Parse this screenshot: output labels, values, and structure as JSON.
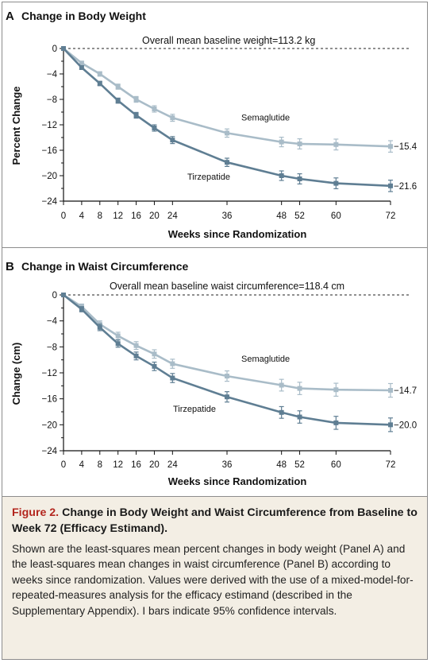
{
  "figure": {
    "caption_label": "Figure 2.",
    "caption_title": "Change in Body Weight and Waist Circumference from Baseline to Week 72 (Efficacy Estimand).",
    "caption_body": "Shown are the least-squares mean percent changes in body weight (Panel A) and the least-squares mean changes in waist circumference (Panel B) according to weeks since randomization. Values were derived with the use of a mixed-model-for-repeated-measures analysis for the efficacy estimand (described in the Supplementary Appendix). I bars indicate 95% confidence intervals."
  },
  "chart_data": [
    {
      "type": "line",
      "panel_letter": "A",
      "title": "Change in Body Weight",
      "xlabel": "Weeks since Randomization",
      "ylabel": "Percent Change",
      "baseline_note": "Overall mean baseline weight=113.2 kg",
      "xlim": [
        0,
        72
      ],
      "ylim": [
        -24,
        0
      ],
      "x_ticks": [
        0,
        4,
        8,
        12,
        16,
        20,
        24,
        36,
        48,
        52,
        60,
        72
      ],
      "y_ticks": [
        0,
        -4,
        -8,
        -12,
        -16,
        -20,
        -24
      ],
      "grid": false,
      "series": [
        {
          "name": "Semaglutide",
          "color": "#a9bcc8",
          "end_label": "−15.4",
          "x": [
            0,
            4,
            8,
            12,
            16,
            20,
            24,
            36,
            48,
            52,
            60,
            72
          ],
          "y": [
            0,
            -2.3,
            -4.0,
            -6.0,
            -8.0,
            -9.5,
            -10.9,
            -13.3,
            -14.7,
            -15.0,
            -15.1,
            -15.4
          ],
          "ci_halfwidth": [
            0,
            0.3,
            0.35,
            0.4,
            0.45,
            0.5,
            0.55,
            0.65,
            0.75,
            0.8,
            0.85,
            0.9
          ]
        },
        {
          "name": "Tirzepatide",
          "color": "#5f7e93",
          "end_label": "−21.6",
          "x": [
            0,
            4,
            8,
            12,
            16,
            20,
            24,
            36,
            48,
            52,
            60,
            72
          ],
          "y": [
            0,
            -3.0,
            -5.5,
            -8.2,
            -10.5,
            -12.5,
            -14.4,
            -17.9,
            -20.0,
            -20.5,
            -21.2,
            -21.6
          ],
          "ci_halfwidth": [
            0,
            0.3,
            0.35,
            0.4,
            0.45,
            0.5,
            0.55,
            0.65,
            0.75,
            0.8,
            0.85,
            0.9
          ]
        }
      ]
    },
    {
      "type": "line",
      "panel_letter": "B",
      "title": "Change in Waist Circumference",
      "xlabel": "Weeks since Randomization",
      "ylabel": "Change (cm)",
      "baseline_note": "Overall mean baseline waist circumference=118.4 cm",
      "xlim": [
        0,
        72
      ],
      "ylim": [
        -24,
        0
      ],
      "x_ticks": [
        0,
        4,
        8,
        12,
        16,
        20,
        24,
        36,
        48,
        52,
        60,
        72
      ],
      "y_ticks": [
        0,
        -4,
        -8,
        -12,
        -16,
        -20,
        -24
      ],
      "grid": false,
      "series": [
        {
          "name": "Semaglutide",
          "color": "#a9bcc8",
          "end_label": "−14.7",
          "x": [
            0,
            4,
            8,
            12,
            16,
            20,
            24,
            36,
            48,
            52,
            60,
            72
          ],
          "y": [
            0,
            -1.8,
            -4.5,
            -6.3,
            -7.8,
            -9.1,
            -10.6,
            -12.5,
            -13.9,
            -14.4,
            -14.6,
            -14.7
          ],
          "ci_halfwidth": [
            0,
            0.4,
            0.5,
            0.55,
            0.6,
            0.65,
            0.7,
            0.8,
            0.9,
            0.95,
            1.0,
            1.05
          ]
        },
        {
          "name": "Tirzepatide",
          "color": "#5f7e93",
          "end_label": "−20.0",
          "x": [
            0,
            4,
            8,
            12,
            16,
            20,
            24,
            36,
            48,
            52,
            60,
            72
          ],
          "y": [
            0,
            -2.2,
            -5.0,
            -7.5,
            -9.4,
            -11.0,
            -12.8,
            -15.7,
            -18.1,
            -18.8,
            -19.7,
            -20.0
          ],
          "ci_halfwidth": [
            0,
            0.4,
            0.5,
            0.55,
            0.6,
            0.65,
            0.7,
            0.8,
            0.9,
            0.95,
            1.0,
            1.05
          ]
        }
      ]
    }
  ]
}
